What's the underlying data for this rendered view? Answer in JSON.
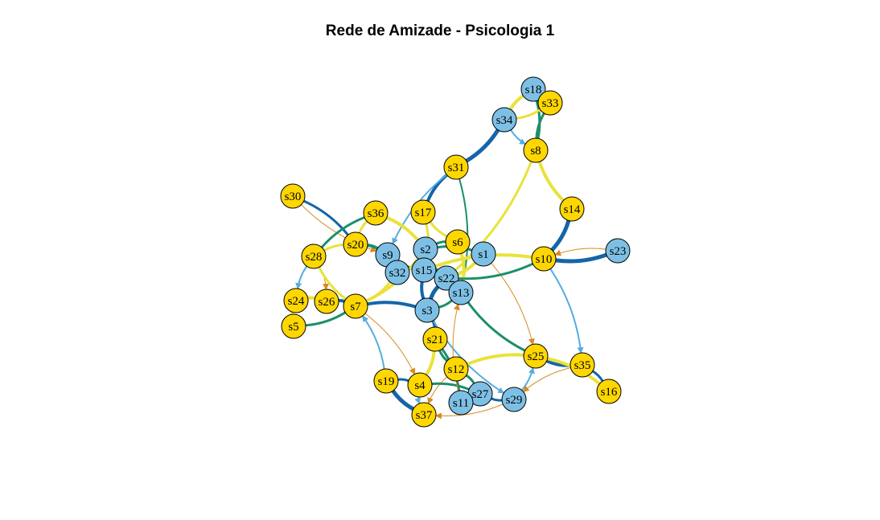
{
  "title": "Rede de Amizade - Psicologia 1",
  "colors": {
    "node_yellow": "#FFD700",
    "node_blue": "#7EC0E5",
    "edge_yellow": "#EAE23A",
    "edge_green": "#1B8F6A",
    "edge_darkblue": "#1565A8",
    "edge_lightblue": "#55ADDF",
    "edge_orange": "#D98A1E"
  },
  "nodes": [
    {
      "id": "s18",
      "group": "blue"
    },
    {
      "id": "s33",
      "group": "yellow"
    },
    {
      "id": "s34",
      "group": "blue"
    },
    {
      "id": "s8",
      "group": "yellow"
    },
    {
      "id": "s31",
      "group": "yellow"
    },
    {
      "id": "s30",
      "group": "yellow"
    },
    {
      "id": "s14",
      "group": "yellow"
    },
    {
      "id": "s36",
      "group": "yellow"
    },
    {
      "id": "s17",
      "group": "yellow"
    },
    {
      "id": "s23",
      "group": "blue"
    },
    {
      "id": "s6",
      "group": "yellow"
    },
    {
      "id": "s20",
      "group": "yellow"
    },
    {
      "id": "s2",
      "group": "blue"
    },
    {
      "id": "s9",
      "group": "blue"
    },
    {
      "id": "s1",
      "group": "blue"
    },
    {
      "id": "s28",
      "group": "yellow"
    },
    {
      "id": "s10",
      "group": "yellow"
    },
    {
      "id": "s15",
      "group": "blue"
    },
    {
      "id": "s32",
      "group": "blue"
    },
    {
      "id": "s22",
      "group": "blue"
    },
    {
      "id": "s13",
      "group": "blue"
    },
    {
      "id": "s24",
      "group": "yellow"
    },
    {
      "id": "s26",
      "group": "yellow"
    },
    {
      "id": "s7",
      "group": "yellow"
    },
    {
      "id": "s3",
      "group": "blue"
    },
    {
      "id": "s5",
      "group": "yellow"
    },
    {
      "id": "s21",
      "group": "yellow"
    },
    {
      "id": "s25",
      "group": "yellow"
    },
    {
      "id": "s35",
      "group": "yellow"
    },
    {
      "id": "s12",
      "group": "yellow"
    },
    {
      "id": "s19",
      "group": "yellow"
    },
    {
      "id": "s4",
      "group": "yellow"
    },
    {
      "id": "s16",
      "group": "yellow"
    },
    {
      "id": "s27",
      "group": "blue"
    },
    {
      "id": "s29",
      "group": "blue"
    },
    {
      "id": "s11",
      "group": "blue"
    },
    {
      "id": "s37",
      "group": "yellow"
    }
  ],
  "edges": [
    {
      "from": "s18",
      "to": "s33",
      "color": "edge_green",
      "weight": 3
    },
    {
      "from": "s18",
      "to": "s34",
      "color": "edge_yellow",
      "weight": 4
    },
    {
      "from": "s18",
      "to": "s8",
      "color": "edge_green",
      "weight": 3
    },
    {
      "from": "s33",
      "to": "s8",
      "color": "edge_green",
      "weight": 3
    },
    {
      "from": "s33",
      "to": "s34",
      "color": "edge_yellow",
      "weight": 3
    },
    {
      "from": "s34",
      "to": "s8",
      "color": "edge_lightblue",
      "weight": 2
    },
    {
      "from": "s34",
      "to": "s31",
      "color": "edge_darkblue",
      "weight": 5
    },
    {
      "from": "s8",
      "to": "s14",
      "color": "edge_yellow",
      "weight": 4
    },
    {
      "from": "s8",
      "to": "s22",
      "color": "edge_yellow",
      "weight": 3
    },
    {
      "from": "s31",
      "to": "s17",
      "color": "edge_darkblue",
      "weight": 4
    },
    {
      "from": "s31",
      "to": "s13",
      "color": "edge_green",
      "weight": 2
    },
    {
      "from": "s31",
      "to": "s9",
      "color": "edge_lightblue",
      "weight": 2
    },
    {
      "from": "s30",
      "to": "s20",
      "color": "edge_darkblue",
      "weight": 3
    },
    {
      "from": "s30",
      "to": "s9",
      "color": "edge_orange",
      "weight": 1
    },
    {
      "from": "s14",
      "to": "s10",
      "color": "edge_darkblue",
      "weight": 5
    },
    {
      "from": "s36",
      "to": "s28",
      "color": "edge_green",
      "weight": 3
    },
    {
      "from": "s36",
      "to": "s2",
      "color": "edge_yellow",
      "weight": 4
    },
    {
      "from": "s36",
      "to": "s20",
      "color": "edge_yellow",
      "weight": 3
    },
    {
      "from": "s17",
      "to": "s15",
      "color": "edge_yellow",
      "weight": 3
    },
    {
      "from": "s17",
      "to": "s6",
      "color": "edge_yellow",
      "weight": 3
    },
    {
      "from": "s23",
      "to": "s10",
      "color": "edge_darkblue",
      "weight": 5
    },
    {
      "from": "s23",
      "to": "s10",
      "color": "edge_orange",
      "weight": 1
    },
    {
      "from": "s6",
      "to": "s13",
      "color": "edge_yellow",
      "weight": 4
    },
    {
      "from": "s6",
      "to": "s2",
      "color": "edge_green",
      "weight": 3
    },
    {
      "from": "s20",
      "to": "s9",
      "color": "edge_green",
      "weight": 4
    },
    {
      "from": "s20",
      "to": "s28",
      "color": "edge_yellow",
      "weight": 3
    },
    {
      "from": "s2",
      "to": "s15",
      "color": "edge_darkblue",
      "weight": 4
    },
    {
      "from": "s2",
      "to": "s22",
      "color": "edge_green",
      "weight": 3
    },
    {
      "from": "s9",
      "to": "s32",
      "color": "edge_green",
      "weight": 4
    },
    {
      "from": "s9",
      "to": "s15",
      "color": "edge_green",
      "weight": 4
    },
    {
      "from": "s1",
      "to": "s22",
      "color": "edge_yellow",
      "weight": 4
    },
    {
      "from": "s1",
      "to": "s2",
      "color": "edge_green",
      "weight": 3
    },
    {
      "from": "s1",
      "to": "s25",
      "color": "edge_orange",
      "weight": 1
    },
    {
      "from": "s28",
      "to": "s24",
      "color": "edge_lightblue",
      "weight": 2
    },
    {
      "from": "s28",
      "to": "s26",
      "color": "edge_orange",
      "weight": 1
    },
    {
      "from": "s28",
      "to": "s7",
      "color": "edge_yellow",
      "weight": 3
    },
    {
      "from": "s10",
      "to": "s22",
      "color": "edge_green",
      "weight": 3
    },
    {
      "from": "s10",
      "to": "s15",
      "color": "edge_yellow",
      "weight": 4
    },
    {
      "from": "s10",
      "to": "s35",
      "color": "edge_lightblue",
      "weight": 2
    },
    {
      "from": "s15",
      "to": "s3",
      "color": "edge_darkblue",
      "weight": 4
    },
    {
      "from": "s32",
      "to": "s7",
      "color": "edge_yellow",
      "weight": 3
    },
    {
      "from": "s22",
      "to": "s3",
      "color": "edge_darkblue",
      "weight": 5
    },
    {
      "from": "s13",
      "to": "s3",
      "color": "edge_green",
      "weight": 3
    },
    {
      "from": "s13",
      "to": "s25",
      "color": "edge_green",
      "weight": 3
    },
    {
      "from": "s24",
      "to": "s26",
      "color": "edge_yellow",
      "weight": 4
    },
    {
      "from": "s24",
      "to": "s5",
      "color": "edge_yellow",
      "weight": 3
    },
    {
      "from": "s26",
      "to": "s7",
      "color": "edge_darkblue",
      "weight": 4
    },
    {
      "from": "s5",
      "to": "s7",
      "color": "edge_green",
      "weight": 3
    },
    {
      "from": "s7",
      "to": "s3",
      "color": "edge_darkblue",
      "weight": 4
    },
    {
      "from": "s7",
      "to": "s2",
      "color": "edge_yellow",
      "weight": 4
    },
    {
      "from": "s7",
      "to": "s4",
      "color": "edge_orange",
      "weight": 1
    },
    {
      "from": "s19",
      "to": "s7",
      "color": "edge_lightblue",
      "weight": 2
    },
    {
      "from": "s3",
      "to": "s21",
      "color": "edge_darkblue",
      "weight": 4
    },
    {
      "from": "s3",
      "to": "s29",
      "color": "edge_lightblue",
      "weight": 2
    },
    {
      "from": "s21",
      "to": "s4",
      "color": "edge_yellow",
      "weight": 4
    },
    {
      "from": "s21",
      "to": "s12",
      "color": "edge_green",
      "weight": 3
    },
    {
      "from": "s21",
      "to": "s11",
      "color": "edge_green",
      "weight": 3
    },
    {
      "from": "s12",
      "to": "s37",
      "color": "edge_orange",
      "weight": 1
    },
    {
      "from": "s12",
      "to": "s27",
      "color": "edge_green",
      "weight": 3
    },
    {
      "from": "s4",
      "to": "s37",
      "color": "edge_lightblue",
      "weight": 2
    },
    {
      "from": "s4",
      "to": "s27",
      "color": "edge_green",
      "weight": 3
    },
    {
      "from": "s19",
      "to": "s37",
      "color": "edge_darkblue",
      "weight": 5
    },
    {
      "from": "s19",
      "to": "s4",
      "color": "edge_darkblue",
      "weight": 3
    },
    {
      "from": "s27",
      "to": "s29",
      "color": "edge_darkblue",
      "weight": 3
    },
    {
      "from": "s27",
      "to": "s11",
      "color": "edge_lightblue",
      "weight": 2
    },
    {
      "from": "s29",
      "to": "s25",
      "color": "edge_lightblue",
      "weight": 2
    },
    {
      "from": "s29",
      "to": "s37",
      "color": "edge_orange",
      "weight": 1
    },
    {
      "from": "s25",
      "to": "s35",
      "color": "edge_darkblue",
      "weight": 4
    },
    {
      "from": "s25",
      "to": "s16",
      "color": "edge_yellow",
      "weight": 4
    },
    {
      "from": "s25",
      "to": "s12",
      "color": "edge_yellow",
      "weight": 4
    },
    {
      "from": "s35",
      "to": "s16",
      "color": "edge_darkblue",
      "weight": 3
    },
    {
      "from": "s35",
      "to": "s29",
      "color": "edge_orange",
      "weight": 1
    },
    {
      "from": "s11",
      "to": "s13",
      "color": "edge_orange",
      "weight": 1
    }
  ]
}
